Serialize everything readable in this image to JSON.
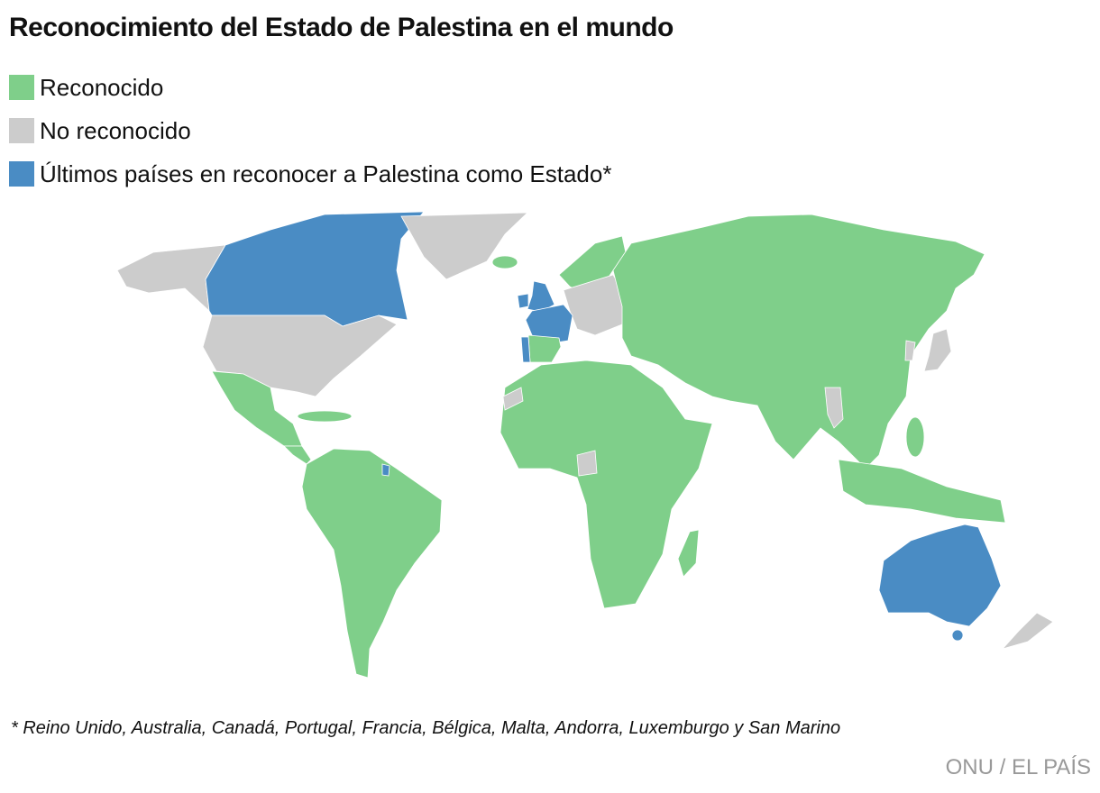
{
  "header": {
    "title": "Reconocimiento del Estado de Palestina en el mundo"
  },
  "legend": {
    "items": [
      {
        "label": "Reconocido",
        "color": "#7fcf8a"
      },
      {
        "label": "No reconocido",
        "color": "#cccccc"
      },
      {
        "label": "Últimos países en reconocer a Palestina como Estado*",
        "color": "#4a8cc4"
      }
    ]
  },
  "footnote": "* Reino Unido, Australia, Canadá, Portugal, Francia, Bélgica, Malta, Andorra, Luxemburgo y San Marino",
  "source": "ONU / EL PAÍS"
}
